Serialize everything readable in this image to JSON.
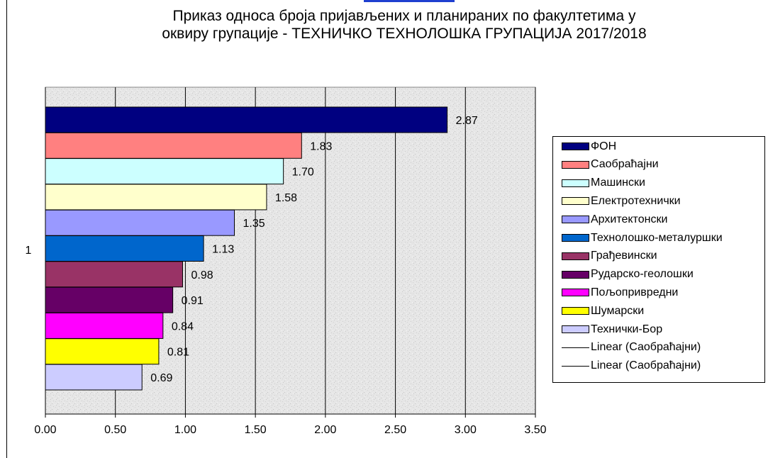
{
  "chart_data": {
    "type": "bar",
    "orientation": "horizontal",
    "title": "Приказ односа броја пријављених и планираних по факултетима у\nоквиру групације    - ТЕХНИЧКО ТЕХНОЛОШКА ГРУПАЦИЈА  2017/2018",
    "category_label": "1",
    "xlim": [
      0,
      3.5
    ],
    "x_ticks": [
      "0.00",
      "0.50",
      "1.00",
      "1.50",
      "2.00",
      "2.50",
      "3.00",
      "3.50"
    ],
    "grid": "vertical",
    "legend_position": "right",
    "series": [
      {
        "name": "ФОН",
        "value": 2.87,
        "label": "2.87",
        "color": "#000080"
      },
      {
        "name": "Саобраћајни",
        "value": 1.83,
        "label": "1.83",
        "color": "#ff8080"
      },
      {
        "name": "Машински",
        "value": 1.7,
        "label": "1.70",
        "color": "#ccffff"
      },
      {
        "name": "Електротехнички",
        "value": 1.58,
        "label": "1.58",
        "color": "#ffffcc"
      },
      {
        "name": "Архитектонски",
        "value": 1.35,
        "label": "1.35",
        "color": "#9999ff"
      },
      {
        "name": "Технолошко-металуршки",
        "value": 1.13,
        "label": "1.13",
        "color": "#0066cc"
      },
      {
        "name": "Грађевински",
        "value": 0.98,
        "label": "0.98",
        "color": "#993366"
      },
      {
        "name": "Рударско-геолошки",
        "value": 0.91,
        "label": "0.91",
        "color": "#660066"
      },
      {
        "name": "Пољопривредни",
        "value": 0.84,
        "label": "0.84",
        "color": "#ff00ff"
      },
      {
        "name": "Шумарски",
        "value": 0.81,
        "label": "0.81",
        "color": "#ffff00"
      },
      {
        "name": "Технички-Бор",
        "value": 0.69,
        "label": "0.69",
        "color": "#ccccff"
      }
    ],
    "trendlines": [
      "Linear (Саобраћајни)",
      "Linear (Саобраћајни)"
    ]
  }
}
